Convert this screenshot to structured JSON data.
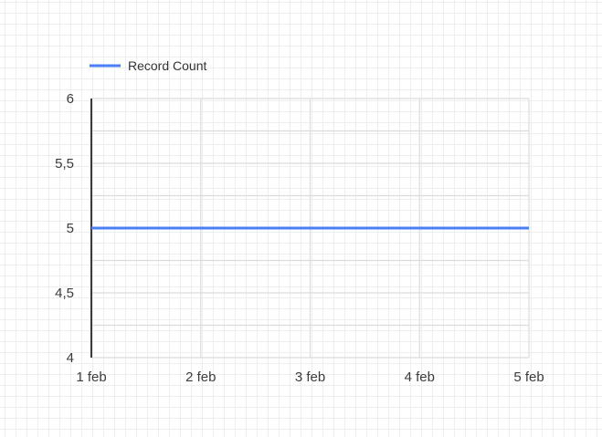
{
  "chart_data": {
    "type": "line",
    "x": [
      "1 feb",
      "2 feb",
      "3 feb",
      "4 feb",
      "5 feb"
    ],
    "series": [
      {
        "name": "Record Count",
        "values": [
          5,
          5,
          5,
          5,
          5
        ]
      }
    ],
    "ylim": [
      4,
      6
    ],
    "y_ticks": [
      "4",
      "4,5",
      "5",
      "5,5",
      "6"
    ],
    "grid": true,
    "legend_position": "top-left",
    "colors": {
      "series": "#4a7ff5",
      "grid": "#dcdcdc",
      "axis": "#3a3a3a"
    }
  }
}
